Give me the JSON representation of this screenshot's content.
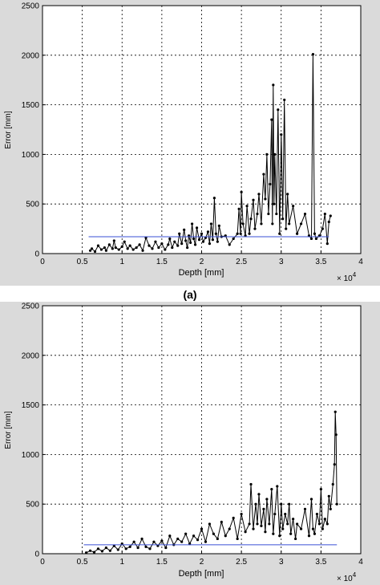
{
  "figure": {
    "caption": "(a)"
  },
  "chart_data": [
    {
      "type": "line",
      "panel_label": "(a)",
      "xlabel": "Depth [mm]",
      "ylabel": "Error [mm]",
      "x_multiplier": "× 10",
      "x_exponent": "4",
      "xlim": [
        0,
        4
      ],
      "ylim": [
        0,
        2500
      ],
      "xticks": [
        "0",
        "0.5",
        "1",
        "1.5",
        "2",
        "2.5",
        "3",
        "3.5",
        "4"
      ],
      "yticks": [
        "0",
        "500",
        "1000",
        "1500",
        "2000",
        "2500"
      ],
      "grid": true,
      "colors": {
        "data": "#000000",
        "mean": "#3a4fd6"
      },
      "mean_line": {
        "value": 170,
        "x": [
          0.58,
          3.6
        ]
      },
      "series": [
        {
          "x": [
            0.6,
            0.62,
            0.66,
            0.7,
            0.74,
            0.78,
            0.8,
            0.84,
            0.88,
            0.9,
            0.92,
            0.96,
            1.0,
            1.03,
            1.07,
            1.1,
            1.14,
            1.18,
            1.22,
            1.26,
            1.3,
            1.34,
            1.38,
            1.42,
            1.46,
            1.5,
            1.54,
            1.58,
            1.6,
            1.63,
            1.66,
            1.7,
            1.72,
            1.75,
            1.78,
            1.8,
            1.82,
            1.84,
            1.86,
            1.88,
            1.9,
            1.92,
            1.94,
            1.97,
            2.0,
            2.02,
            2.05,
            2.08,
            2.1,
            2.12,
            2.14,
            2.16,
            2.18,
            2.2,
            2.22,
            2.25,
            2.3,
            2.35,
            2.4,
            2.45,
            2.47,
            2.49,
            2.5,
            2.52,
            2.55,
            2.57,
            2.6,
            2.62,
            2.65,
            2.67,
            2.7,
            2.72,
            2.75,
            2.78,
            2.8,
            2.82,
            2.84,
            2.86,
            2.88,
            2.89,
            2.9,
            2.91,
            2.92,
            2.94,
            2.96,
            2.98,
            3.0,
            3.02,
            3.04,
            3.06,
            3.08,
            3.1,
            3.15,
            3.2,
            3.25,
            3.3,
            3.35,
            3.38,
            3.4,
            3.42,
            3.44,
            3.48,
            3.52,
            3.55,
            3.58,
            3.6,
            3.62
          ],
          "y": [
            30,
            50,
            20,
            80,
            40,
            60,
            30,
            90,
            50,
            130,
            60,
            40,
            70,
            120,
            50,
            80,
            40,
            60,
            90,
            30,
            160,
            80,
            50,
            120,
            60,
            100,
            40,
            90,
            150,
            60,
            120,
            80,
            200,
            100,
            240,
            130,
            60,
            180,
            110,
            300,
            150,
            90,
            260,
            140,
            200,
            120,
            160,
            220,
            100,
            300,
            140,
            560,
            200,
            120,
            280,
            170,
            180,
            90,
            150,
            200,
            450,
            200,
            620,
            300,
            180,
            480,
            200,
            350,
            540,
            250,
            400,
            600,
            300,
            800,
            550,
            1000,
            400,
            700,
            1350,
            300,
            1700,
            500,
            1000,
            400,
            1450,
            200,
            1200,
            350,
            1550,
            250,
            600,
            300,
            480,
            200,
            300,
            400,
            180,
            150,
            2010,
            200,
            150,
            180,
            250,
            400,
            100,
            320,
            380
          ]
        }
      ]
    },
    {
      "type": "line",
      "panel_label": "",
      "xlabel": "Depth [mm]",
      "ylabel": "Error [mm]",
      "x_multiplier": "× 10",
      "x_exponent": "4",
      "xlim": [
        0,
        4
      ],
      "ylim": [
        0,
        2500
      ],
      "xticks": [
        "0",
        "0.5",
        "1",
        "1.5",
        "2",
        "2.5",
        "3",
        "3.5",
        "4"
      ],
      "yticks": [
        "0",
        "500",
        "1000",
        "1500",
        "2000",
        "2500"
      ],
      "grid": true,
      "colors": {
        "data": "#000000",
        "mean": "#3a4fd6"
      },
      "mean_line": {
        "value": 90,
        "x": [
          0.52,
          3.7
        ]
      },
      "series": [
        {
          "x": [
            0.55,
            0.6,
            0.65,
            0.7,
            0.75,
            0.8,
            0.85,
            0.9,
            0.95,
            1.0,
            1.05,
            1.1,
            1.15,
            1.2,
            1.25,
            1.3,
            1.35,
            1.4,
            1.45,
            1.5,
            1.55,
            1.6,
            1.65,
            1.7,
            1.75,
            1.8,
            1.85,
            1.9,
            1.95,
            2.0,
            2.05,
            2.1,
            2.15,
            2.2,
            2.25,
            2.3,
            2.35,
            2.4,
            2.45,
            2.5,
            2.55,
            2.6,
            2.62,
            2.65,
            2.68,
            2.7,
            2.72,
            2.75,
            2.78,
            2.8,
            2.82,
            2.85,
            2.88,
            2.9,
            2.92,
            2.95,
            2.98,
            3.0,
            3.02,
            3.05,
            3.08,
            3.1,
            3.12,
            3.15,
            3.18,
            3.2,
            3.25,
            3.3,
            3.35,
            3.38,
            3.4,
            3.42,
            3.45,
            3.48,
            3.5,
            3.52,
            3.55,
            3.58,
            3.6,
            3.62,
            3.65,
            3.67,
            3.68,
            3.69,
            3.7
          ],
          "y": [
            10,
            30,
            15,
            50,
            25,
            60,
            30,
            80,
            40,
            100,
            50,
            70,
            120,
            60,
            150,
            70,
            50,
            120,
            80,
            130,
            60,
            180,
            90,
            150,
            120,
            200,
            100,
            180,
            140,
            250,
            120,
            300,
            200,
            150,
            320,
            180,
            250,
            360,
            150,
            400,
            220,
            300,
            700,
            250,
            500,
            300,
            600,
            280,
            450,
            220,
            550,
            300,
            650,
            200,
            400,
            680,
            180,
            500,
            250,
            400,
            300,
            500,
            200,
            350,
            150,
            300,
            250,
            450,
            180,
            550,
            250,
            200,
            400,
            300,
            650,
            250,
            350,
            300,
            580,
            450,
            700,
            900,
            1430,
            1200,
            500
          ]
        }
      ]
    }
  ]
}
